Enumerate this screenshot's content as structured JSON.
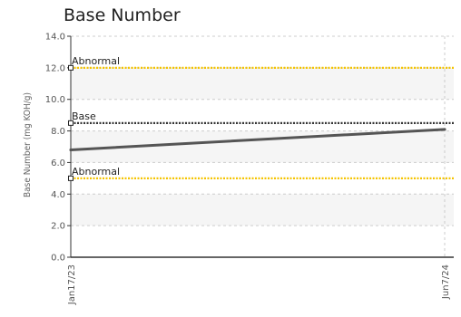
{
  "chart_data": {
    "type": "line",
    "title": "Base Number",
    "ylabel": "Base Number (mg KOH/g)",
    "xlabel": "",
    "ylim": [
      0,
      14
    ],
    "y_ticks": [
      "0.0",
      "2.0",
      "4.0",
      "6.0",
      "8.0",
      "10.0",
      "12.0",
      "14.0"
    ],
    "y_tick_values": [
      0,
      2,
      4,
      6,
      8,
      10,
      12,
      14
    ],
    "x_ticks": [
      "Jan17/23",
      "Jun7/24"
    ],
    "x": [
      "Jan17/23",
      "Jun7/24"
    ],
    "series": [
      {
        "values": [
          6.8,
          8.1
        ],
        "color": "#555555"
      }
    ],
    "reference_lines": [
      {
        "label": "Abnormal",
        "value": 12.0,
        "color": "#f5c400"
      },
      {
        "label": "Base",
        "value": 8.5,
        "color": "#333333"
      },
      {
        "label": "Abnormal",
        "value": 5.0,
        "color": "#f5c400"
      }
    ],
    "grid": true,
    "band_color": "#f5f5f5"
  }
}
